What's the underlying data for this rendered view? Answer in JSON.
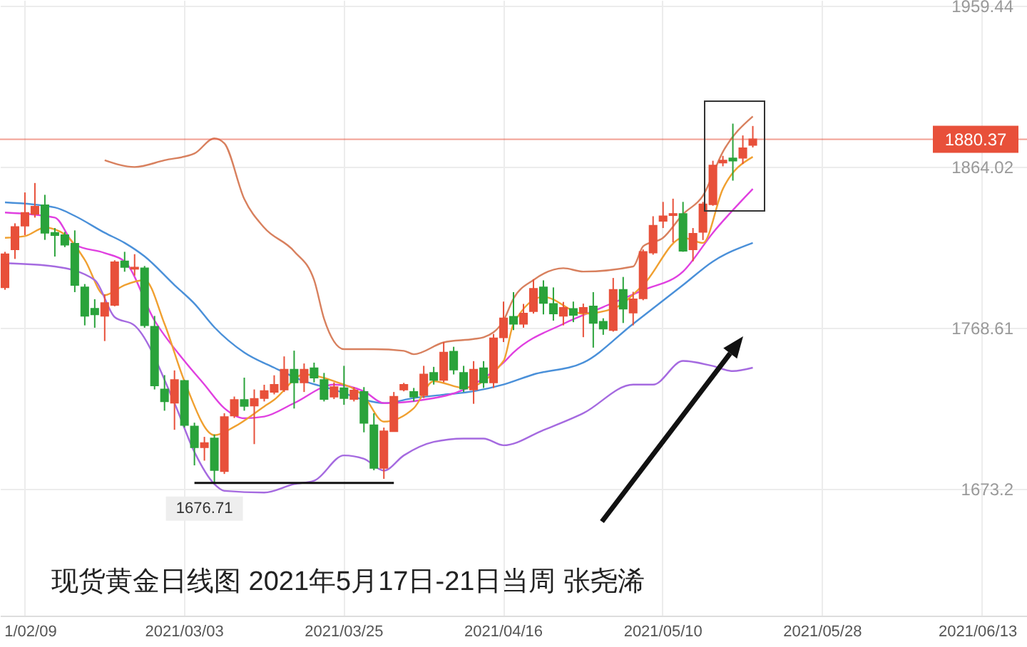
{
  "chart_data": {
    "type": "candlestick",
    "title": "现货黄金日线图 2021年5月17日-21日当周  张尧浠",
    "categories": [
      null,
      null,
      "1/02/09",
      null,
      null,
      null,
      null,
      null,
      null,
      null,
      null,
      null,
      null,
      null,
      null,
      null,
      null,
      null,
      "2021/03/03",
      null,
      null,
      null,
      null,
      null,
      null,
      null,
      null,
      null,
      null,
      null,
      null,
      null,
      null,
      null,
      "2021/03/25",
      null,
      null,
      null,
      null,
      null,
      null,
      null,
      null,
      null,
      null,
      null,
      null,
      null,
      null,
      null,
      "2021/04/16",
      null,
      null,
      null,
      null,
      null,
      null,
      null,
      null,
      null,
      null,
      null,
      null,
      null,
      null,
      null,
      "2021/05/10",
      null,
      null,
      null,
      null,
      null,
      null,
      null,
      null,
      null,
      null,
      null,
      null,
      null,
      null,
      null,
      "2021/05/28",
      null,
      null,
      null,
      null,
      null,
      null,
      null,
      null,
      null,
      null,
      null,
      null,
      null,
      null,
      null,
      "2021/06/13",
      null,
      null,
      null,
      null
    ],
    "colors": [
      "#e8503a",
      "#e8503a",
      "#e8503a",
      "#e8503a",
      "#2aa33b",
      "#2aa33b",
      "#2aa33b",
      "#2aa33b",
      "#2aa33b",
      "#2aa33b",
      "#e8503a",
      "#e8503a",
      "#2aa33b",
      "#e8503a",
      "#2aa33b",
      "#2aa33b",
      "#2aa33b",
      "#e8503a",
      "#2aa33b",
      "#2aa33b",
      "#e8503a",
      "#2aa33b",
      "#e8503a",
      "#e8503a",
      "#2aa33b",
      "#e8503a",
      "#e8503a",
      "#e8503a",
      "#e8503a",
      "#2aa33b",
      "#e8503a",
      "#2aa33b",
      "#2aa33b",
      "#e8503a",
      "#2aa33b",
      "#e8503a",
      "#2aa33b",
      "#2aa33b",
      "#e8503a",
      "#e8503a",
      "#e8503a",
      "#2aa33b",
      "#e8503a",
      "#2aa33b",
      "#e8503a",
      "#2aa33b",
      "#2aa33b",
      "#e8503a",
      "#2aa33b",
      "#e8503a",
      "#e8503a",
      "#2aa33b",
      "#e8503a",
      "#e8503a",
      "#2aa33b",
      "#2aa33b",
      "#e8503a",
      "#2aa33b",
      "#e8503a",
      "#2aa33b",
      "#2aa33b",
      "#e8503a",
      "#2aa33b",
      "#e8503a",
      "#e8503a",
      "#e8503a",
      "#e8503a",
      "#e8503a",
      "#2aa33b",
      "#e8503a",
      "#e8503a",
      "#e8503a",
      "#e8503a",
      "#2aa33b",
      "#e8503a",
      "#e8503a",
      null,
      null,
      null,
      null,
      null,
      null,
      null,
      null,
      null,
      null,
      null,
      null,
      null,
      null,
      null,
      null,
      null,
      null,
      null,
      null,
      null,
      null,
      null,
      null,
      null,
      null,
      null
    ],
    "ohlc": [
      [
        1792.6,
        1813.7,
        1791.2,
        1812.3
      ],
      [
        1815.1,
        1830.6,
        1809.5,
        1828.4
      ],
      [
        1829.2,
        1848.9,
        1823.6,
        1836.8
      ],
      [
        1836.2,
        1854.5,
        1834.0,
        1840.5
      ],
      [
        1841.3,
        1847.5,
        1820.8,
        1825.0
      ],
      [
        1825.0,
        1827.8,
        1810.9,
        1823.6
      ],
      [
        1823.6,
        1825.5,
        1816.5,
        1817.9
      ],
      [
        1818.5,
        1826.4,
        1789.8,
        1794.0
      ],
      [
        1792.6,
        1794.6,
        1770.1,
        1775.7
      ],
      [
        1780.0,
        1785.6,
        1768.7,
        1776.6
      ],
      [
        1775.7,
        1788.4,
        1760.8,
        1783.3
      ],
      [
        1782.2,
        1808.7,
        1781.4,
        1807.5
      ],
      [
        1808.1,
        1813.7,
        1801.9,
        1804.7
      ],
      [
        1803.6,
        1812.3,
        1799.6,
        1804.4
      ],
      [
        1803.9,
        1805.3,
        1768.7,
        1770.1
      ],
      [
        1769.3,
        1775.7,
        1732.1,
        1734.4
      ],
      [
        1732.1,
        1740.6,
        1719.5,
        1725.1
      ],
      [
        1724.2,
        1743.4,
        1708.2,
        1737.7
      ],
      [
        1737.2,
        1737.7,
        1709.6,
        1711.0
      ],
      [
        1710.2,
        1712.4,
        1687.1,
        1697.8
      ],
      [
        1697.8,
        1704.0,
        1689.9,
        1700.3
      ],
      [
        1703.1,
        1705.4,
        1677.0,
        1684.3
      ],
      [
        1683.7,
        1718.0,
        1682.0,
        1715.8
      ],
      [
        1716.6,
        1727.9,
        1715.2,
        1725.9
      ],
      [
        1725.9,
        1739.1,
        1719.5,
        1722.3
      ],
      [
        1722.5,
        1732.1,
        1699.7,
        1726.5
      ],
      [
        1727.0,
        1734.9,
        1725.0,
        1731.2
      ],
      [
        1730.6,
        1740.5,
        1729.2,
        1734.9
      ],
      [
        1732.0,
        1751.7,
        1730.6,
        1743.9
      ],
      [
        1743.9,
        1755.1,
        1720.8,
        1736.3
      ],
      [
        1736.3,
        1747.5,
        1730.6,
        1743.9
      ],
      [
        1744.7,
        1748.0,
        1736.3,
        1739.1
      ],
      [
        1737.7,
        1741.9,
        1725.0,
        1726.4
      ],
      [
        1727.8,
        1736.3,
        1726.4,
        1733.5
      ],
      [
        1732.9,
        1746.1,
        1723.0,
        1727.0
      ],
      [
        1726.4,
        1733.5,
        1725.0,
        1731.5
      ],
      [
        1730.6,
        1733.5,
        1706.7,
        1712.3
      ],
      [
        1710.9,
        1718.0,
        1684.2,
        1685.6
      ],
      [
        1685.6,
        1709.5,
        1679.1,
        1707.3
      ],
      [
        1707.3,
        1730.6,
        1707.0,
        1727.8
      ],
      [
        1732.0,
        1736.0,
        1731.0,
        1734.9
      ],
      [
        1730.6,
        1733.0,
        1725.0,
        1727.8
      ],
      [
        1728.7,
        1746.1,
        1727.0,
        1741.0
      ],
      [
        1741.9,
        1745.5,
        1735.0,
        1737.7
      ],
      [
        1737.7,
        1760.2,
        1736.3,
        1754.0
      ],
      [
        1754.5,
        1757.4,
        1741.0,
        1743.9
      ],
      [
        1741.9,
        1746.1,
        1730.6,
        1732.6
      ],
      [
        1732.0,
        1748.9,
        1723.6,
        1743.9
      ],
      [
        1744.7,
        1748.9,
        1733.0,
        1736.3
      ],
      [
        1736.3,
        1765.0,
        1733.0,
        1762.4
      ],
      [
        1763.0,
        1784.2,
        1760.2,
        1774.3
      ],
      [
        1775.2,
        1789.8,
        1767.3,
        1771.0
      ],
      [
        1771.0,
        1782.8,
        1768.7,
        1777.1
      ],
      [
        1778.5,
        1797.4,
        1777.1,
        1791.8
      ],
      [
        1792.6,
        1796.8,
        1776.6,
        1783.3
      ],
      [
        1782.8,
        1792.6,
        1772.9,
        1777.1
      ],
      [
        1775.7,
        1784.0,
        1770.1,
        1780.5
      ],
      [
        1779.9,
        1784.2,
        1772.0,
        1776.3
      ],
      [
        1777.7,
        1783.0,
        1763.1,
        1780.5
      ],
      [
        1781.3,
        1789.8,
        1756.9,
        1771.5
      ],
      [
        1772.3,
        1774.3,
        1764.5,
        1768.1
      ],
      [
        1767.3,
        1798.2,
        1766.4,
        1791.2
      ],
      [
        1791.2,
        1798.8,
        1771.5,
        1780.0
      ],
      [
        1777.7,
        1790.0,
        1770.1,
        1785.6
      ],
      [
        1786.1,
        1815.1,
        1785.0,
        1813.7
      ],
      [
        1813.2,
        1834.8,
        1812.0,
        1829.2
      ],
      [
        1832.0,
        1843.3,
        1827.8,
        1834.8
      ],
      [
        1835.4,
        1845.2,
        1819.3,
        1836.2
      ],
      [
        1836.2,
        1843.3,
        1813.7,
        1814.3
      ],
      [
        1815.1,
        1827.8,
        1808.1,
        1824.4
      ],
      [
        1825.5,
        1843.3,
        1820.7,
        1841.9
      ],
      [
        1841.9,
        1867.7,
        1841.0,
        1864.9
      ],
      [
        1866.6,
        1870.6,
        1864.4,
        1867.8
      ],
      [
        1869.1,
        1889.7,
        1855.9,
        1867.7
      ],
      [
        1869.4,
        1882.7,
        1865.8,
        1875.1
      ],
      [
        1877.0,
        1888.3,
        1875.6,
        1880.4
      ],
      null,
      null,
      null,
      null,
      null,
      null,
      null,
      null,
      null,
      null,
      null,
      null,
      null,
      null,
      null,
      null,
      null,
      null,
      null,
      null,
      null,
      null,
      null,
      null,
      null,
      null,
      null
    ],
    "series": [
      {
        "type": "line",
        "color": "#d8805e",
        "values": [
          null,
          null,
          null,
          null,
          null,
          null,
          null,
          null,
          null,
          null,
          1868,
          null,
          null,
          1864,
          null,
          null,
          1868,
          null,
          null,
          1872,
          null,
          1881,
          1878,
          null,
          1845,
          null,
          1828,
          null,
          null,
          1814,
          null,
          1797,
          1774,
          null,
          1756,
          null,
          null,
          1756,
          null,
          null,
          1755,
          1753,
          null,
          null,
          1760,
          null,
          null,
          1762,
          1763,
          null,
          1773,
          1786,
          null,
          1797,
          null,
          null,
          1804,
          null,
          1802,
          null,
          null,
          null,
          null,
          1805,
          1817,
          null,
          1822,
          null,
          1836,
          null,
          1847,
          null,
          1873,
          null,
          null,
          1894,
          null,
          null,
          null,
          null,
          null,
          null,
          null,
          null,
          null,
          null,
          null,
          null,
          null,
          null,
          null,
          null,
          null,
          null,
          null,
          null,
          null,
          null,
          null,
          null,
          null,
          null,
          null
        ]
      },
      {
        "type": "line",
        "color": "#4a90d9",
        "values": [
          1843,
          null,
          null,
          null,
          null,
          1840,
          null,
          1835,
          null,
          null,
          1825,
          null,
          1819,
          null,
          1811,
          null,
          null,
          1794,
          null,
          1783,
          null,
          1769,
          null,
          null,
          1754,
          null,
          null,
          1745,
          null,
          null,
          1737,
          null,
          null,
          1732,
          null,
          null,
          1726,
          null,
          1724,
          null,
          null,
          1727,
          null,
          null,
          1729,
          null,
          null,
          1731,
          null,
          null,
          1735,
          null,
          null,
          1741,
          null,
          null,
          null,
          null,
          1748,
          null,
          null,
          null,
          null,
          1771,
          null,
          null,
          null,
          null,
          1794,
          null,
          null,
          1808,
          null,
          null,
          null,
          1819,
          null,
          null,
          null,
          null,
          null,
          null,
          null,
          null,
          null,
          null,
          null,
          null,
          null,
          null,
          null,
          null,
          null,
          null,
          null,
          null,
          null,
          null,
          null,
          null,
          null,
          null,
          null
        ]
      },
      {
        "type": "line",
        "color": "#e040e0",
        "values": [
          1837,
          null,
          null,
          null,
          null,
          1834,
          null,
          1818,
          null,
          null,
          1813,
          null,
          1808,
          null,
          null,
          1773,
          null,
          null,
          1749,
          null,
          1735,
          null,
          1721,
          null,
          1715,
          null,
          1716,
          null,
          null,
          1724,
          null,
          null,
          null,
          1735,
          null,
          null,
          1731,
          null,
          1724,
          null,
          null,
          null,
          1726,
          null,
          null,
          null,
          1732,
          null,
          null,
          null,
          1748,
          1754,
          null,
          null,
          null,
          null,
          1771,
          null,
          null,
          null,
          1781,
          null,
          null,
          null,
          1791,
          null,
          null,
          null,
          1802,
          null,
          null,
          1825,
          null,
          null,
          null,
          1851,
          null,
          null,
          null,
          null,
          null,
          null,
          null,
          null,
          null,
          null,
          null,
          null,
          null,
          null,
          null,
          null,
          null,
          null,
          null,
          null,
          null,
          null,
          null,
          null,
          null,
          null,
          null
        ]
      },
      {
        "type": "line",
        "color": "#f0a030",
        "values": [
          1822,
          null,
          1823,
          null,
          1828,
          null,
          1824,
          null,
          1809,
          null,
          1788,
          null,
          1794,
          null,
          1797,
          null,
          1771,
          null,
          1737,
          null,
          null,
          1705,
          null,
          1710,
          null,
          null,
          1722,
          1726,
          null,
          null,
          1741,
          null,
          null,
          1737,
          null,
          null,
          1728,
          null,
          1713,
          null,
          null,
          1721,
          null,
          1737,
          null,
          null,
          1733,
          null,
          null,
          null,
          1749,
          1771,
          null,
          null,
          1787,
          null,
          null,
          null,
          1777,
          null,
          null,
          1780,
          null,
          null,
          1794,
          null,
          null,
          null,
          1822,
          null,
          1819,
          null,
          1851,
          null,
          null,
          1870,
          null,
          null,
          null,
          null,
          null,
          null,
          null,
          null,
          null,
          null,
          null,
          null,
          null,
          null,
          null,
          null,
          null,
          null,
          null,
          null,
          null,
          null,
          null,
          null,
          null,
          null,
          null
        ]
      },
      {
        "type": "line",
        "color": "#a56ae0",
        "values": [
          1807,
          null,
          null,
          null,
          null,
          1805,
          null,
          null,
          null,
          1797,
          null,
          1775,
          null,
          1770,
          null,
          null,
          null,
          1724,
          null,
          1695,
          null,
          1676,
          1672,
          null,
          null,
          null,
          1671,
          null,
          null,
          1676,
          null,
          1678,
          null,
          null,
          1693,
          null,
          1691,
          null,
          1684,
          null,
          1693,
          null,
          null,
          1701,
          null,
          null,
          1703,
          null,
          1703,
          null,
          1699,
          null,
          null,
          null,
          1708,
          null,
          null,
          null,
          1718,
          null,
          null,
          null,
          null,
          1735,
          null,
          1735,
          null,
          null,
          1749,
          null,
          null,
          1746,
          null,
          1743,
          null,
          1745,
          null,
          null,
          null,
          null,
          null,
          null,
          null,
          null,
          null,
          null,
          null,
          null,
          null,
          null,
          null,
          null,
          null,
          null,
          null,
          null,
          null,
          null,
          null,
          null,
          null,
          null,
          null
        ]
      }
    ],
    "ylim": [
      1598,
      1963
    ],
    "yticks": [
      1959.44,
      1864.02,
      1768.61,
      1673.2
    ],
    "grid": true,
    "ref_lines": [
      {
        "axis": "y",
        "value": 1880.37,
        "label": "1880.37",
        "color": "#e8503a"
      }
    ],
    "annotations": [
      {
        "text": "1676.71",
        "y": 1676.71
      }
    ]
  }
}
